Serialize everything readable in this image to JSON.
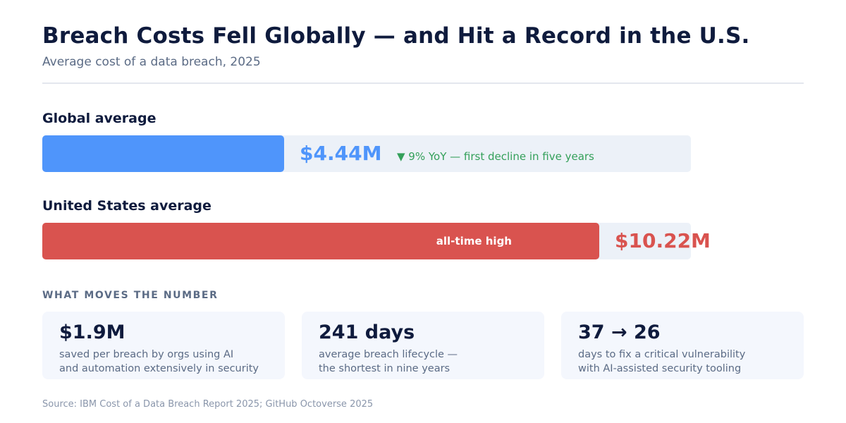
{
  "title": "Breach Costs Fell Globally — and Hit a Record in the U.S.",
  "subtitle": "Average cost of a data breach, 2025",
  "chart_data": {
    "type": "bar",
    "orientation": "horizontal",
    "title": "Breach Costs Fell Globally — and Hit a Record in the U.S.",
    "subtitle": "Average cost of a data breach, 2025",
    "unit": "$M",
    "xlim": [
      0,
      11.9
    ],
    "categories": [
      "Global average",
      "United States average"
    ],
    "values": [
      4.44,
      10.22
    ],
    "value_labels": [
      "$4.44M",
      "$10.22M"
    ],
    "colors": [
      "#4f95fb",
      "#d9534f"
    ],
    "annotations": [
      {
        "category": "Global average",
        "text": "▼ 9% YoY — first decline in five years",
        "color": "#34a05a"
      },
      {
        "category": "United States average",
        "text": "all-time high",
        "color": "#ffffff"
      }
    ]
  },
  "section_label": "WHAT MOVES THE NUMBER",
  "cards": [
    {
      "value": "$1.9M",
      "lines": [
        "saved per breach by orgs using AI",
        "and automation extensively in security"
      ]
    },
    {
      "value": "241 days",
      "lines": [
        "average breach lifecycle —",
        "the shortest in nine years"
      ]
    },
    {
      "value": "37 → 26",
      "lines": [
        "days to fix a critical vulnerability",
        "with AI-assisted security tooling"
      ]
    }
  ],
  "source": "Source: IBM Cost of a Data Breach Report 2025; GitHub Octoverse 2025"
}
